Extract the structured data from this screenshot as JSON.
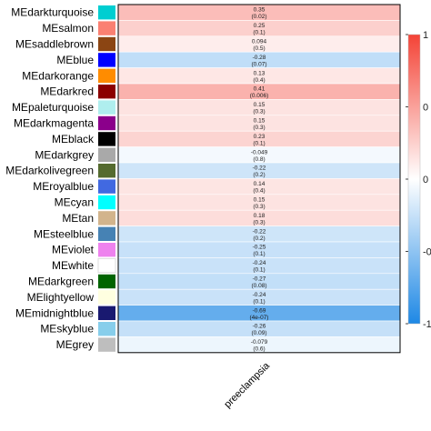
{
  "chart_data": {
    "type": "heatmap",
    "x_categories": [
      "preeclampsia"
    ],
    "rows": [
      {
        "module": "MEdarkturquoise",
        "module_color": "#00ced1",
        "correlation": 0.35,
        "p_value": "(0.02)"
      },
      {
        "module": "MEsalmon",
        "module_color": "#fa8072",
        "correlation": 0.25,
        "p_value": "(0.1)"
      },
      {
        "module": "MEsaddlebrown",
        "module_color": "#8b4513",
        "correlation": 0.094,
        "p_value": "(0.5)"
      },
      {
        "module": "MEblue",
        "module_color": "#0000ff",
        "correlation": -0.28,
        "p_value": "(0.07)"
      },
      {
        "module": "MEdarkorange",
        "module_color": "#ff8c00",
        "correlation": 0.13,
        "p_value": "(0.4)"
      },
      {
        "module": "MEdarkred",
        "module_color": "#8b0000",
        "correlation": 0.41,
        "p_value": "(0.006)"
      },
      {
        "module": "MEpaleturquoise",
        "module_color": "#afeeee",
        "correlation": 0.15,
        "p_value": "(0.3)"
      },
      {
        "module": "MEdarkmagenta",
        "module_color": "#8b008b",
        "correlation": 0.15,
        "p_value": "(0.3)"
      },
      {
        "module": "MEblack",
        "module_color": "#000000",
        "correlation": 0.23,
        "p_value": "(0.1)"
      },
      {
        "module": "MEdarkgrey",
        "module_color": "#a9a9a9",
        "correlation": -0.049,
        "p_value": "(0.8)"
      },
      {
        "module": "MEdarkolivegreen",
        "module_color": "#556b2f",
        "correlation": -0.22,
        "p_value": "(0.2)"
      },
      {
        "module": "MEroyalblue",
        "module_color": "#4169e1",
        "correlation": 0.14,
        "p_value": "(0.4)"
      },
      {
        "module": "MEcyan",
        "module_color": "#00ffff",
        "correlation": 0.15,
        "p_value": "(0.3)"
      },
      {
        "module": "MEtan",
        "module_color": "#d2b48c",
        "correlation": 0.18,
        "p_value": "(0.3)"
      },
      {
        "module": "MEsteelblue",
        "module_color": "#4682b4",
        "correlation": -0.22,
        "p_value": "(0.2)"
      },
      {
        "module": "MEviolet",
        "module_color": "#ee82ee",
        "correlation": -0.25,
        "p_value": "(0.1)"
      },
      {
        "module": "MEwhite",
        "module_color": "#ffffff",
        "correlation": -0.24,
        "p_value": "(0.1)"
      },
      {
        "module": "MEdarkgreen",
        "module_color": "#006400",
        "correlation": -0.27,
        "p_value": "(0.08)"
      },
      {
        "module": "MElightyellow",
        "module_color": "#ffffe0",
        "correlation": -0.24,
        "p_value": "(0.1)"
      },
      {
        "module": "MEmidnightblue",
        "module_color": "#191970",
        "correlation": -0.69,
        "p_value": "(4e-07)"
      },
      {
        "module": "MEskyblue",
        "module_color": "#87ceeb",
        "correlation": -0.26,
        "p_value": "(0.09)"
      },
      {
        "module": "MEgrey",
        "module_color": "#bebebe",
        "correlation": -0.079,
        "p_value": "(0.6)"
      }
    ],
    "color_scale": {
      "min": -1,
      "mid": 0,
      "max": 1,
      "low_color": "#1e88e5",
      "mid_color": "#ffffff",
      "high_color": "#f44336"
    },
    "legend_ticks": [
      "1",
      "0",
      "0",
      "-0",
      "-1"
    ],
    "legend_tick_values": [
      1,
      0.5,
      0,
      -0.5,
      -1
    ],
    "legend_position": "right"
  }
}
